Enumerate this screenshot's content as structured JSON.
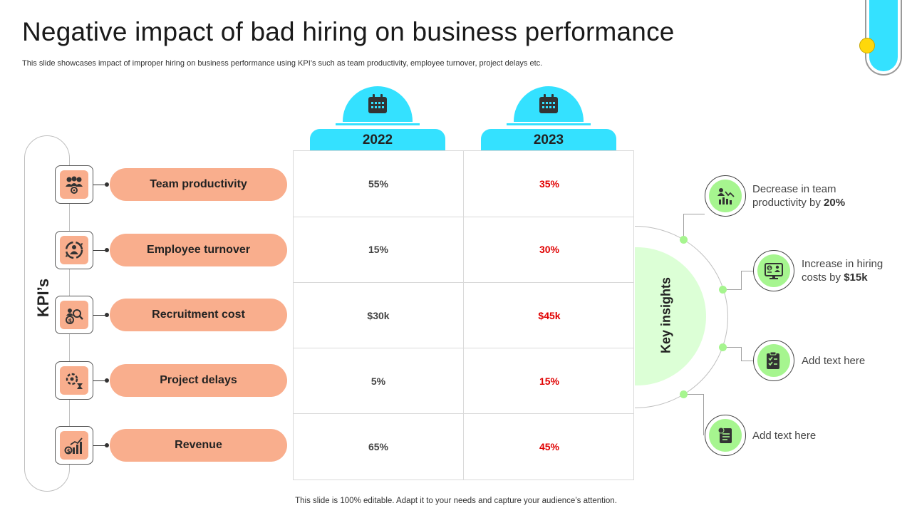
{
  "header": {
    "title": "Negative impact of bad hiring on business performance",
    "subtitle": "This slide showcases impact of improper hiring on business performance using KPI’s such as team productivity, employee turnover, project delays etc."
  },
  "kpi_section": {
    "label": "KPI’s",
    "items": [
      {
        "label": "Team productivity",
        "icon": "team-icon",
        "v2022": "55%",
        "v2023": "35%"
      },
      {
        "label": "Employee turnover",
        "icon": "turnover-icon",
        "v2022": "15%",
        "v2023": "30%"
      },
      {
        "label": "Recruitment cost",
        "icon": "recruitment-cost-icon",
        "v2022": "$30k",
        "v2023": "$45k"
      },
      {
        "label": "Project delays",
        "icon": "project-delay-icon",
        "v2022": "5%",
        "v2023": "15%"
      },
      {
        "label": "Revenue",
        "icon": "revenue-icon",
        "v2022": "65%",
        "v2023": "45%"
      }
    ]
  },
  "years": [
    "2022",
    "2023"
  ],
  "key_insights": {
    "label": "Key insights",
    "items": [
      {
        "line1": "Decrease in team",
        "line2_prefix": "productivity  by ",
        "line2_bold": "20%",
        "icon": "productivity-chart-icon"
      },
      {
        "line1": "Increase  in hiring",
        "line2_prefix": "costs by ",
        "line2_bold": "$15k",
        "icon": "hiring-cost-icon"
      },
      {
        "line1": "Add text here",
        "line2_prefix": "",
        "line2_bold": "",
        "icon": "checklist-icon"
      },
      {
        "line1": "Add text here",
        "line2_prefix": "",
        "line2_bold": "",
        "icon": "document-icon"
      }
    ]
  },
  "footer": "This slide is 100% editable. Adapt it to your needs and capture your audience’s attention.",
  "colors": {
    "accent_cyan": "#34E1FF",
    "kpi_peach": "#F9AE8D",
    "insight_green": "#A6F58F",
    "value_red": "#E00000",
    "deco_yellow": "#FFD80A"
  }
}
